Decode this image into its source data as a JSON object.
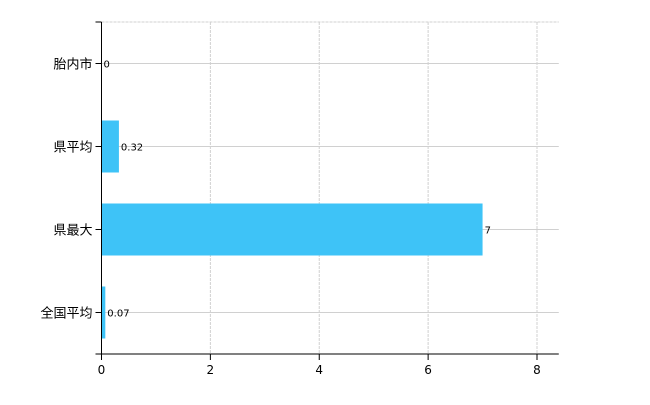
{
  "chart_data": {
    "type": "bar",
    "orientation": "horizontal",
    "title": "",
    "xlabel": "",
    "ylabel": "",
    "categories": [
      "胎内市",
      "県平均",
      "県最大",
      "全国平均"
    ],
    "values": [
      0,
      0.32,
      7,
      0.07
    ],
    "data_labels": [
      "0",
      "0.32",
      "7",
      "0.07"
    ],
    "xlim": [
      0,
      8.4
    ],
    "x_ticks": [
      0,
      2,
      4,
      6,
      8
    ],
    "x_tick_labels": [
      "0",
      "2",
      "4",
      "6",
      "8"
    ],
    "grid": true,
    "legend": "none",
    "bar_color": "#3ec3f7",
    "grid_color": "#d0d0d0"
  }
}
